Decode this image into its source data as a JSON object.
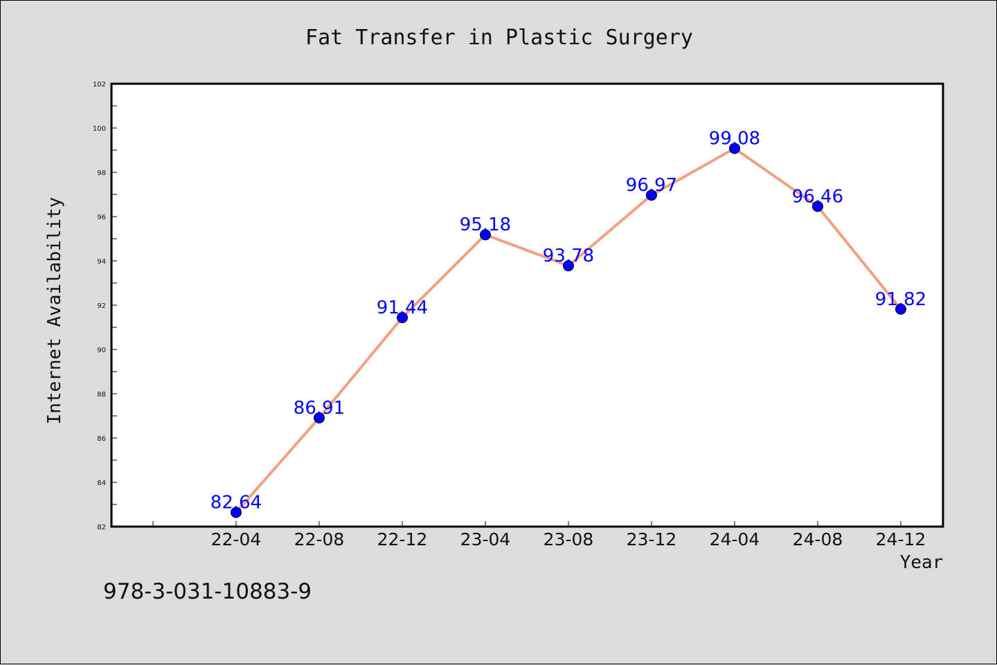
{
  "chart_data": {
    "type": "line",
    "title": "Fat Transfer in Plastic Surgery",
    "xlabel": "Year",
    "ylabel": "Internet Availability",
    "categories": [
      "22-04",
      "22-08",
      "22-12",
      "23-04",
      "23-08",
      "23-12",
      "24-04",
      "24-08",
      "24-12"
    ],
    "series": [
      {
        "values": [
          82.64,
          86.91,
          91.44,
          95.18,
          93.78,
          96.97,
          99.08,
          96.46,
          91.82
        ],
        "line_color": "#f4a07f",
        "marker_color": "#0000ff"
      }
    ],
    "data_labels": [
      "82.64",
      "86.91",
      "91.44",
      "95.18",
      "93.78",
      "96.97",
      "99.08",
      "96.46",
      "91.82"
    ],
    "yticks": [
      82,
      84,
      86,
      88,
      90,
      92,
      94,
      96,
      98,
      100,
      102
    ],
    "ylim": [
      82,
      102
    ],
    "grid": false,
    "legend": "none"
  },
  "footer": {
    "text": "978-3-031-10883-9"
  },
  "colors": {
    "background": "#dcdcdc",
    "plot_background": "#ffffff",
    "label": "#0000ff"
  }
}
